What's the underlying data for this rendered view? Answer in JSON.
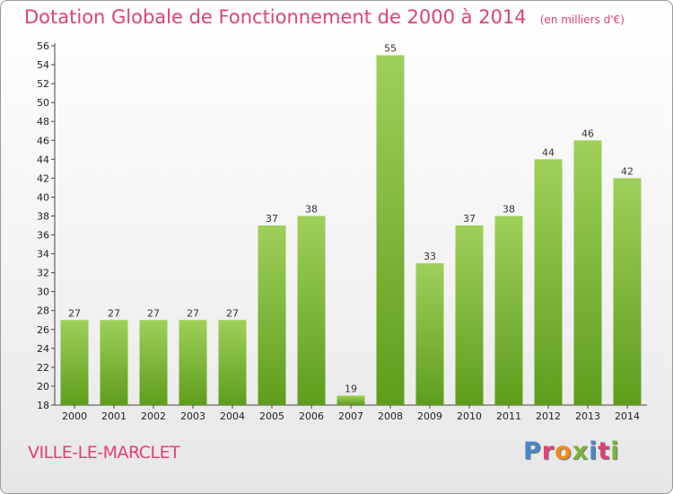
{
  "title": "Dotation Globale de Fonctionnement de 2000 à 2014",
  "unit": "(en milliers d'€)",
  "commune": "VILLE-LE-MARCLET",
  "logo": {
    "text": "Proxiti",
    "colors": [
      "#4a86c8",
      "#e0407a",
      "#f08a1e",
      "#7ab33a",
      "#4a86c8",
      "#e0407a",
      "#7ab33a"
    ]
  },
  "colors": {
    "bar_top": "#9fd05a",
    "bar_bottom": "#5e9d1c",
    "text_accent": "#e0407a"
  },
  "chart_data": {
    "type": "bar",
    "categories": [
      "2000",
      "2001",
      "2002",
      "2003",
      "2004",
      "2005",
      "2006",
      "2007",
      "2008",
      "2009",
      "2010",
      "2011",
      "2012",
      "2013",
      "2014"
    ],
    "values": [
      27,
      27,
      27,
      27,
      27,
      37,
      38,
      19,
      55,
      33,
      37,
      38,
      44,
      46,
      42
    ],
    "ylim": [
      18,
      56
    ],
    "yticks": [
      "18",
      "20",
      "22",
      "24",
      "26",
      "28",
      "30",
      "32",
      "34",
      "36",
      "38",
      "40",
      "42",
      "44",
      "46",
      "48",
      "50",
      "52",
      "54",
      "56"
    ],
    "grid": false,
    "legend": "none"
  }
}
